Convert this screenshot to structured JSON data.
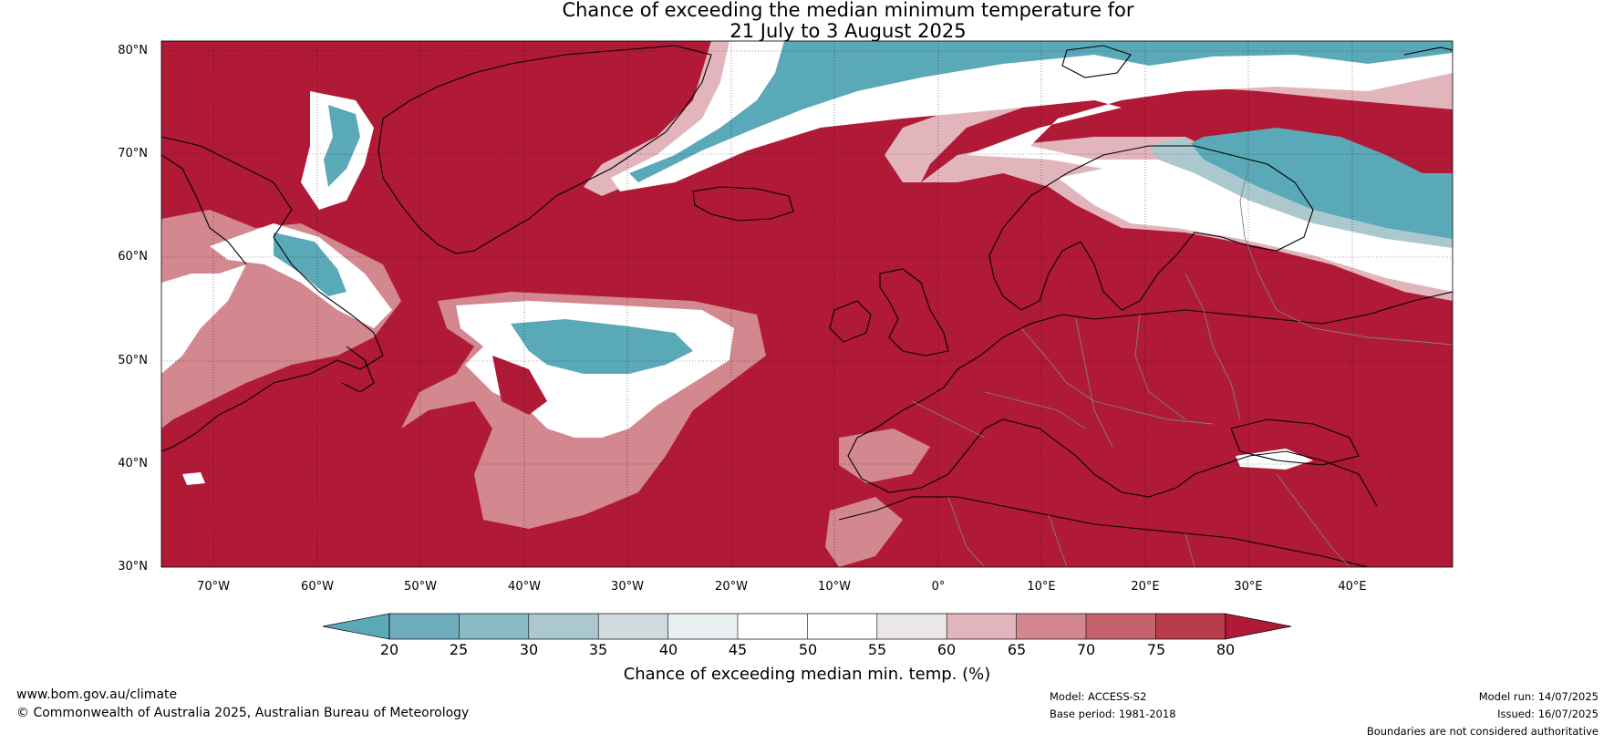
{
  "title_line1": "Chance of exceeding the median minimum temperature for",
  "title_line2": "21 July to 3 August 2025",
  "lat_labels": [
    "80°N",
    "70°N",
    "60°N",
    "50°N",
    "40°N",
    "30°N"
  ],
  "lon_labels": [
    "70°W",
    "60°W",
    "50°W",
    "40°W",
    "30°W",
    "20°W",
    "10°W",
    "0°",
    "10°E",
    "20°E",
    "30°E",
    "40°E"
  ],
  "colorbar": {
    "ticks": [
      "20",
      "25",
      "30",
      "35",
      "40",
      "45",
      "50",
      "55",
      "60",
      "65",
      "70",
      "75",
      "80"
    ],
    "colors": [
      "#5aa9b8",
      "#6fadbc",
      "#8bbac6",
      "#abc8cf",
      "#cfdbdf",
      "#e9f0f1",
      "#ffffff",
      "#ffffff",
      "#ebe7e8",
      "#e2b5bc",
      "#d3878f",
      "#c6626c",
      "#b93c4b",
      "#b01a36"
    ],
    "label": "Chance of exceeding median min. temp. (%)"
  },
  "colors": {
    "high": "#b01a36",
    "low": "#5aa9b8",
    "coast": "#000000",
    "border": "#808080"
  },
  "footer": {
    "website": "www.bom.gov.au/climate",
    "copyright": "© Commonwealth of Australia 2025, Australian Bureau of Meteorology",
    "model": "Model: ACCESS-S2",
    "base_period": "Base period: 1981-2018",
    "model_run": "Model run: 14/07/2025",
    "issued": "Issued: 16/07/2025",
    "disclaimer": "Boundaries are not considered authoritative"
  }
}
